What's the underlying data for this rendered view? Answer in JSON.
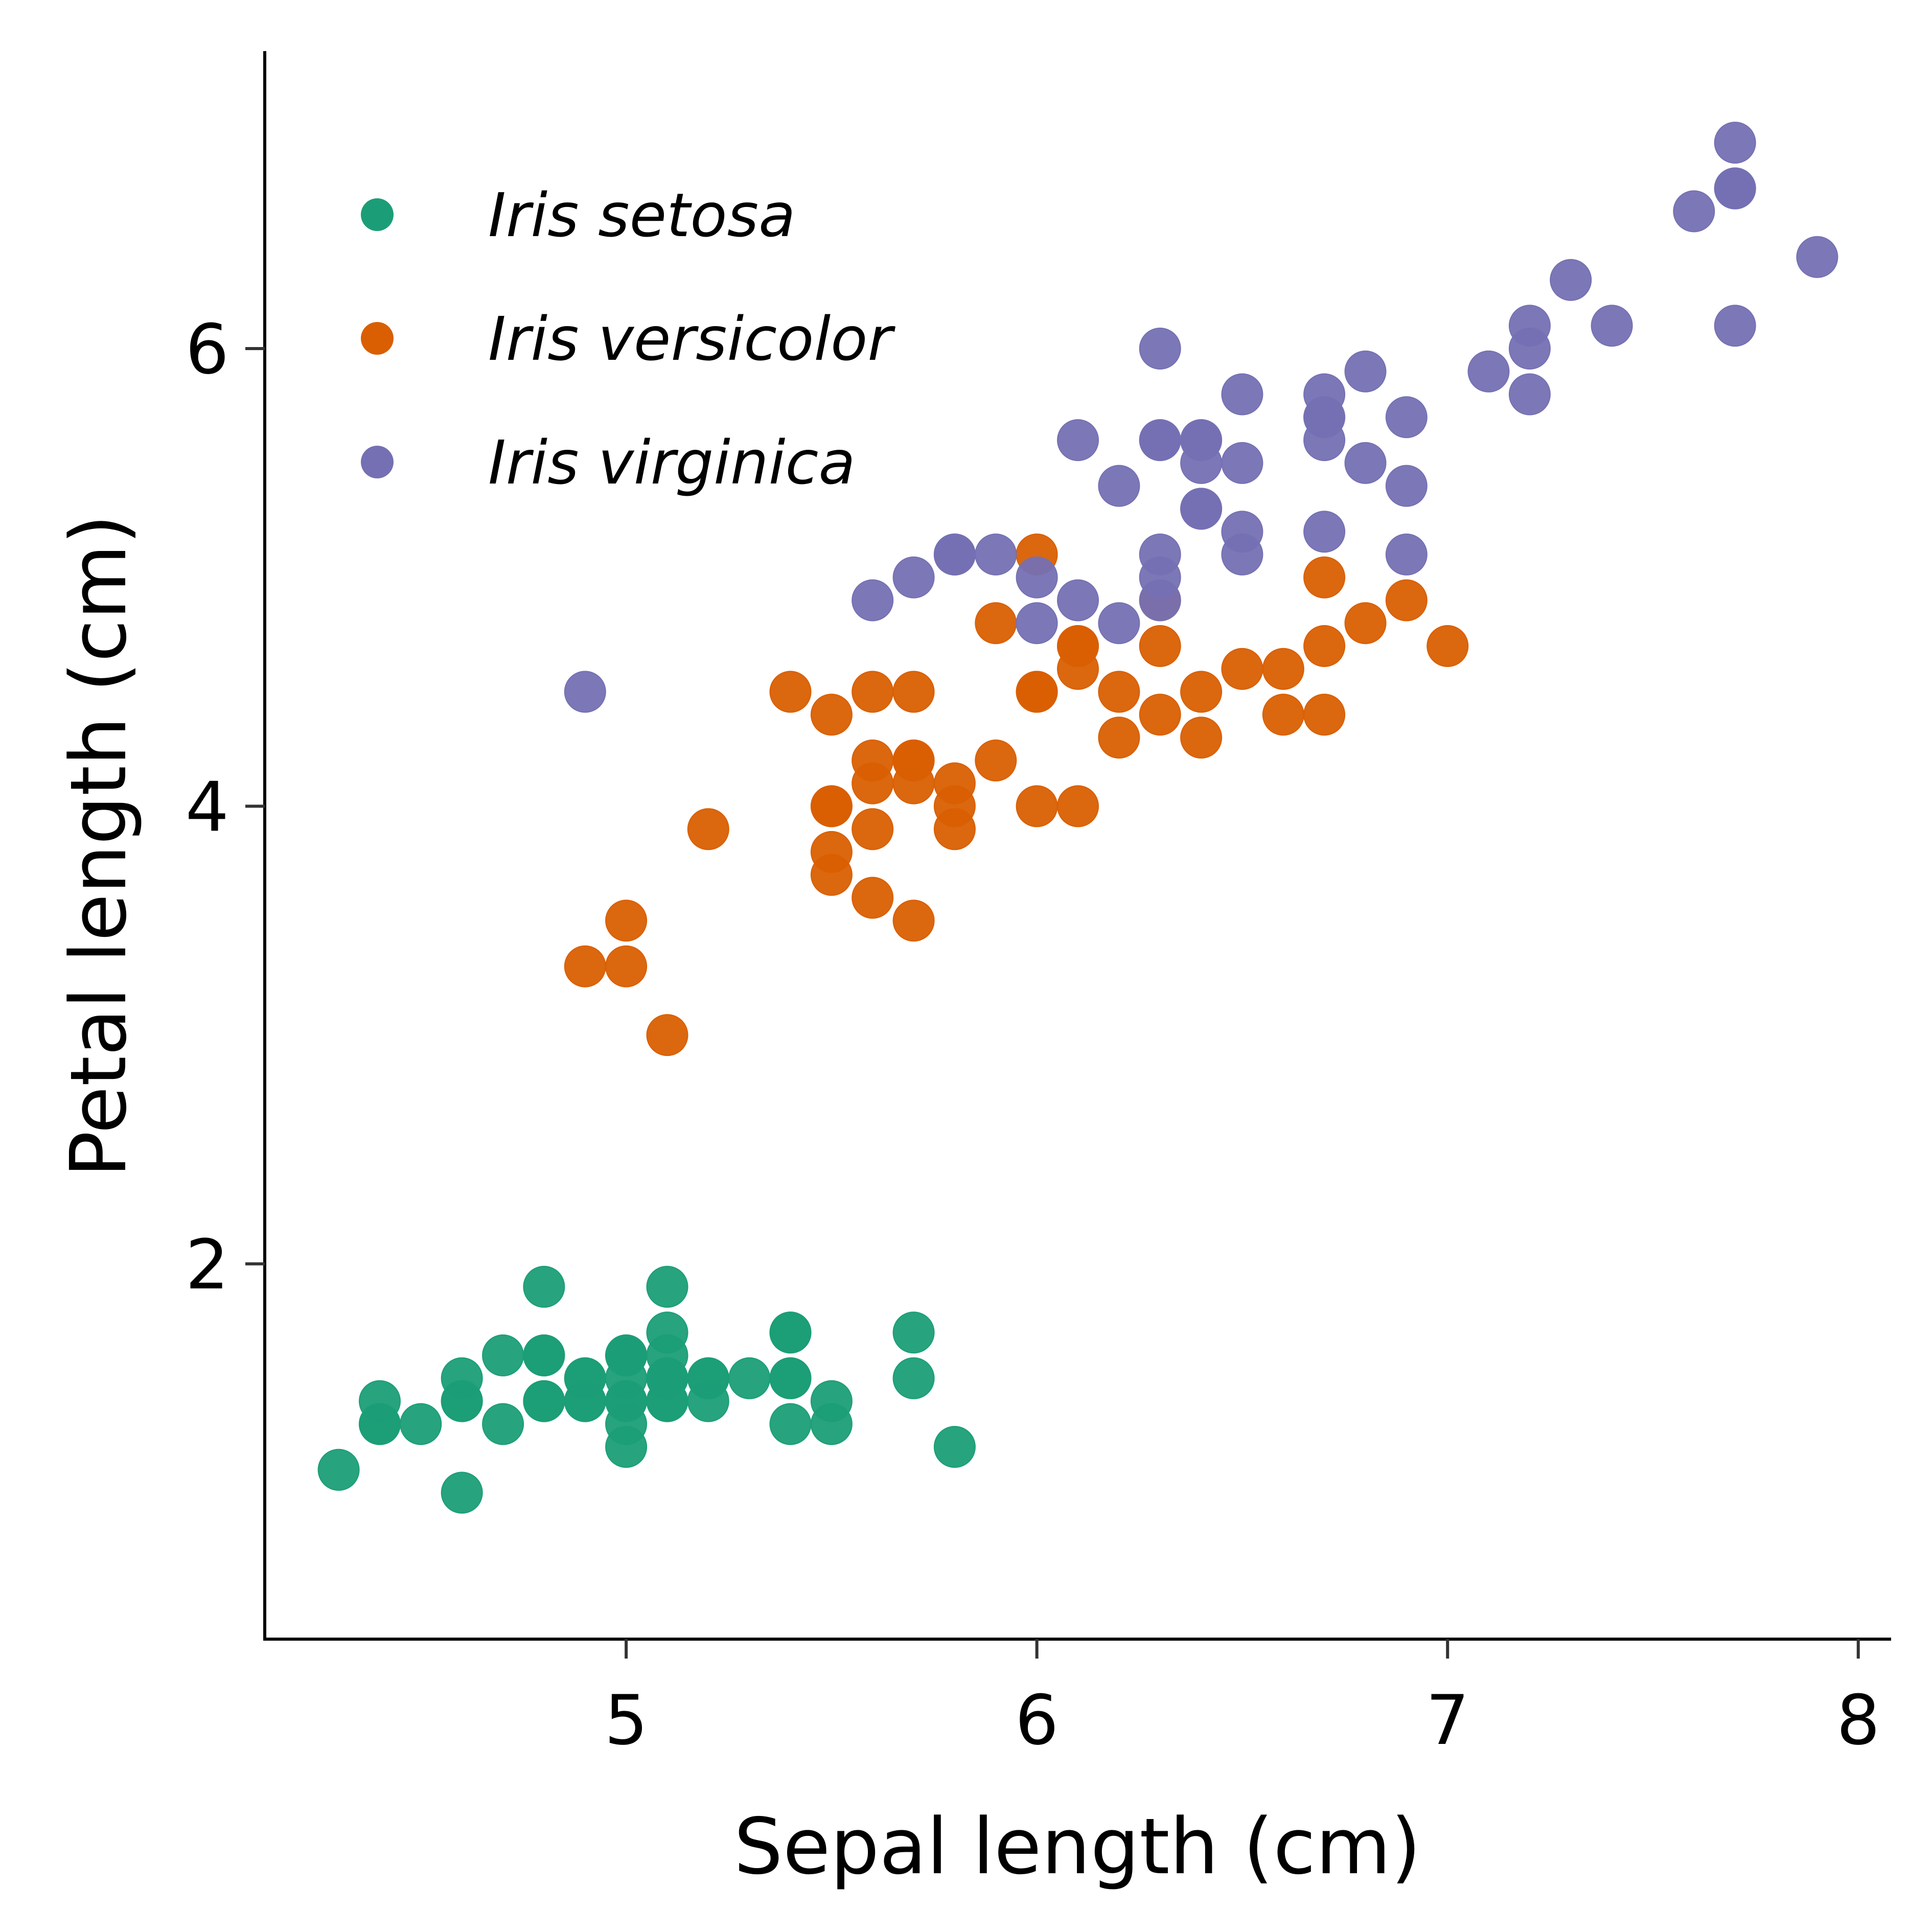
{
  "chart_data": {
    "type": "scatter",
    "title": "",
    "xlabel": "Sepal length (cm)",
    "ylabel": "Petal length (cm)",
    "xlim": [
      4.12,
      8.08
    ],
    "ylim": [
      0.36,
      7.3
    ],
    "xticks": [
      5,
      6,
      7,
      8
    ],
    "yticks": [
      2,
      4,
      6
    ],
    "xtick_labels": [
      "5",
      "6",
      "7",
      "8"
    ],
    "ytick_labels": [
      "2",
      "4",
      "6"
    ],
    "grid": false,
    "legend_position": "top-left",
    "series": [
      {
        "name": "Iris setosa",
        "color": "#1b9e77",
        "x": [
          5.1,
          4.9,
          4.7,
          4.6,
          5.0,
          5.4,
          4.6,
          5.0,
          4.4,
          4.9,
          5.4,
          4.8,
          4.8,
          4.3,
          5.8,
          5.7,
          5.4,
          5.1,
          5.7,
          5.1,
          5.4,
          5.1,
          4.6,
          5.1,
          4.8,
          5.0,
          5.0,
          5.2,
          5.2,
          4.7,
          4.8,
          5.4,
          5.2,
          5.5,
          4.9,
          5.0,
          5.5,
          4.9,
          4.4,
          5.1,
          5.0,
          4.5,
          4.4,
          5.0,
          5.1,
          4.8,
          5.1,
          4.6,
          5.3,
          5.0
        ],
        "y": [
          1.4,
          1.4,
          1.3,
          1.5,
          1.4,
          1.7,
          1.4,
          1.5,
          1.4,
          1.5,
          1.5,
          1.6,
          1.4,
          1.1,
          1.2,
          1.5,
          1.3,
          1.4,
          1.7,
          1.5,
          1.7,
          1.5,
          1.0,
          1.7,
          1.9,
          1.6,
          1.6,
          1.5,
          1.4,
          1.6,
          1.6,
          1.5,
          1.5,
          1.4,
          1.5,
          1.2,
          1.3,
          1.4,
          1.3,
          1.5,
          1.3,
          1.3,
          1.3,
          1.6,
          1.9,
          1.4,
          1.6,
          1.4,
          1.5,
          1.4
        ]
      },
      {
        "name": "Iris versicolor",
        "color": "#d95f02",
        "x": [
          7.0,
          6.4,
          6.9,
          5.5,
          6.5,
          5.7,
          6.3,
          4.9,
          6.6,
          5.2,
          5.0,
          5.9,
          6.0,
          6.1,
          5.6,
          6.7,
          5.6,
          5.8,
          6.2,
          5.6,
          5.9,
          6.1,
          6.3,
          6.1,
          6.4,
          6.6,
          6.8,
          6.7,
          6.0,
          5.7,
          5.5,
          5.5,
          5.8,
          6.0,
          5.4,
          6.0,
          6.7,
          6.3,
          5.6,
          5.5,
          5.5,
          6.1,
          5.8,
          5.0,
          5.6,
          5.7,
          5.7,
          6.2,
          5.1,
          5.7
        ],
        "y": [
          4.7,
          4.5,
          4.9,
          4.0,
          4.6,
          4.5,
          4.7,
          3.3,
          4.6,
          3.9,
          3.5,
          4.2,
          4.0,
          4.7,
          3.6,
          4.4,
          4.5,
          4.1,
          4.5,
          3.9,
          4.8,
          4.0,
          4.9,
          4.7,
          4.3,
          4.4,
          4.8,
          5.0,
          4.5,
          3.5,
          3.8,
          3.7,
          3.9,
          5.1,
          4.5,
          4.5,
          4.7,
          4.4,
          4.1,
          4.0,
          4.4,
          4.6,
          4.0,
          3.3,
          4.2,
          4.2,
          4.2,
          4.3,
          3.0,
          4.1
        ]
      },
      {
        "name": "Iris virginica",
        "color": "#7570b3",
        "x": [
          6.3,
          5.8,
          7.1,
          6.3,
          6.5,
          7.6,
          4.9,
          7.3,
          6.7,
          7.2,
          6.5,
          6.4,
          6.8,
          5.7,
          5.8,
          6.4,
          6.5,
          7.7,
          7.7,
          6.0,
          6.9,
          5.6,
          7.7,
          6.3,
          6.7,
          7.2,
          6.2,
          6.1,
          6.4,
          7.2,
          7.4,
          7.9,
          6.4,
          6.3,
          6.1,
          7.7,
          6.3,
          6.4,
          6.0,
          6.9,
          6.7,
          6.9,
          5.8,
          6.8,
          6.7,
          6.7,
          6.3,
          6.5,
          6.2,
          5.9
        ],
        "y": [
          6.0,
          5.1,
          5.9,
          5.6,
          5.8,
          6.6,
          4.5,
          6.3,
          5.8,
          6.1,
          5.1,
          5.3,
          5.5,
          5.0,
          5.1,
          5.3,
          5.5,
          6.7,
          6.9,
          5.0,
          5.7,
          4.9,
          6.7,
          4.9,
          5.7,
          6.0,
          4.8,
          4.9,
          5.6,
          5.8,
          6.1,
          6.4,
          5.6,
          5.1,
          5.6,
          6.1,
          5.6,
          5.5,
          4.8,
          5.4,
          5.6,
          5.1,
          5.1,
          5.9,
          5.7,
          5.2,
          5.0,
          5.2,
          5.4,
          5.1
        ]
      }
    ]
  }
}
